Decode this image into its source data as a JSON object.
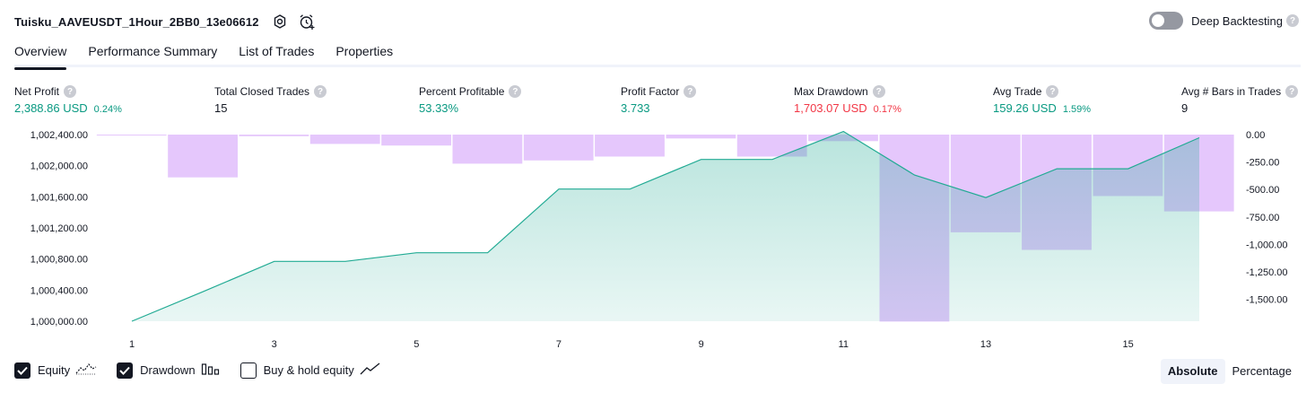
{
  "header": {
    "title": "Tuisku_AAVEUSDT_1Hour_2BB0_13e06612",
    "settings_icon": "gear-icon",
    "alert_icon": "alarm-clock-plus-icon",
    "deep_backtesting_label": "Deep Backtesting",
    "deep_backtesting_on": false
  },
  "tabs": [
    {
      "label": "Overview",
      "active": true
    },
    {
      "label": "Performance Summary",
      "active": false
    },
    {
      "label": "List of Trades",
      "active": false
    },
    {
      "label": "Properties",
      "active": false
    }
  ],
  "metrics": [
    {
      "label": "Net Profit",
      "value": "2,388.86 USD",
      "pct": "0.24%",
      "color": "#089981"
    },
    {
      "label": "Total Closed Trades",
      "value": "15",
      "pct": "",
      "color": "#131722"
    },
    {
      "label": "Percent Profitable",
      "value": "53.33%",
      "pct": "",
      "color": "#089981"
    },
    {
      "label": "Profit Factor",
      "value": "3.733",
      "pct": "",
      "color": "#089981"
    },
    {
      "label": "Max Drawdown",
      "value": "1,703.07 USD",
      "pct": "0.17%",
      "color": "#f23645"
    },
    {
      "label": "Avg Trade",
      "value": "159.26 USD",
      "pct": "1.59%",
      "color": "#089981"
    },
    {
      "label": "Avg # Bars in Trades",
      "value": "9",
      "pct": "",
      "color": "#131722"
    }
  ],
  "help_symbol": "?",
  "chart_data": {
    "type": "area",
    "left_axis": {
      "ticks": [
        "1,002,400.00",
        "1,002,000.00",
        "1,001,600.00",
        "1,001,200.00",
        "1,000,800.00",
        "1,000,400.00",
        "1,000,000.00"
      ],
      "range": [
        1000000,
        1002400
      ]
    },
    "right_axis": {
      "ticks": [
        "0.00",
        "-250.00",
        "-500.00",
        "-750.00",
        "-1,000.00",
        "-1,250.00",
        "-1,500.00"
      ],
      "range": [
        -1700,
        0
      ]
    },
    "x_ticks": [
      "1",
      "3",
      "5",
      "7",
      "9",
      "11",
      "13",
      "15"
    ],
    "x_range": [
      1,
      16
    ],
    "series": [
      {
        "name": "Equity",
        "color": "#22ab94",
        "x": [
          1,
          2,
          3,
          4,
          5,
          6,
          7,
          8,
          9,
          10,
          11,
          12,
          13,
          14,
          15,
          16
        ],
        "values": [
          1000000,
          1000380,
          1000770,
          1000770,
          1000880,
          1000880,
          1001700,
          1001700,
          1002080,
          1002080,
          1002440,
          1001880,
          1001590,
          1001960,
          1001960,
          1002360
        ]
      },
      {
        "name": "Drawdown",
        "color": "#e1bdfc",
        "x": [
          1,
          2,
          3,
          4,
          5,
          6,
          7,
          8,
          9,
          10,
          11,
          12,
          13,
          14,
          15,
          16
        ],
        "values": [
          -3,
          -390,
          -15,
          -85,
          -100,
          -265,
          -235,
          -200,
          -35,
          -200,
          -60,
          -1703,
          -890,
          -1050,
          -560,
          -700
        ]
      }
    ]
  },
  "legend": [
    {
      "label": "Equity",
      "checked": true,
      "icon": "equity-line-icon"
    },
    {
      "label": "Drawdown",
      "checked": true,
      "icon": "drawdown-bars-icon"
    },
    {
      "label": "Buy & hold equity",
      "checked": false,
      "icon": "buy-hold-line-icon"
    }
  ],
  "mode_toggle": {
    "options": [
      "Absolute",
      "Percentage"
    ],
    "selected": "Absolute"
  }
}
